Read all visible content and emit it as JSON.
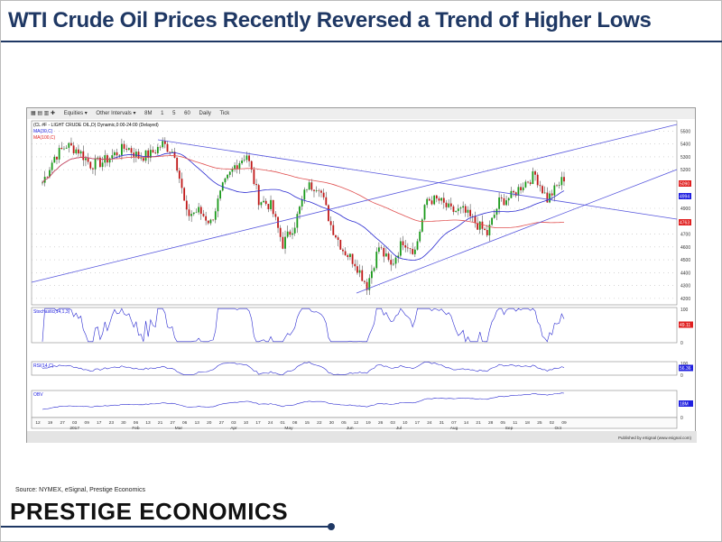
{
  "title": "WTI Crude Oil Prices Recently Reversed a Trend of Higher Lows",
  "toolbar": [
    "Equities ▾",
    "Other Intervals ▾",
    "8M",
    "1",
    "5",
    "60",
    "Daily",
    "Tick"
  ],
  "source": "Source: NYMEX, eSignal, Prestige Economics",
  "brand": "PRESTIGE ECONOMICS",
  "published": "Published by eSignal (www.esignal.com)",
  "chart_data": {
    "type": "candlestick",
    "title": "(CL #F - LIGHT CRUDE OIL,D) Dynamic,0:00-24:00 (Delayed)",
    "legend": [
      "MA(30,C)",
      "MA(100,C)"
    ],
    "ylim": [
      4150,
      5580
    ],
    "yticks": [
      5500,
      5400,
      5300,
      5200,
      4900,
      4700,
      4600,
      4500,
      4400,
      4300,
      4200
    ],
    "badges": [
      {
        "value": "5090",
        "color": "#e02020"
      },
      {
        "value": "4994",
        "color": "#2020e0"
      },
      {
        "value": "4763",
        "color": "#e02020"
      }
    ],
    "x_day_ticks": [
      "12",
      "19",
      "27",
      "03",
      "09",
      "17",
      "23",
      "30",
      "06",
      "13",
      "21",
      "27",
      "06",
      "13",
      "20",
      "27",
      "03",
      "10",
      "17",
      "24",
      "01",
      "08",
      "15",
      "22",
      "30",
      "05",
      "12",
      "19",
      "26",
      "03",
      "10",
      "17",
      "24",
      "31",
      "07",
      "14",
      "21",
      "28",
      "05",
      "11",
      "18",
      "25",
      "02",
      "09"
    ],
    "x_month_ticks": [
      "2017",
      "Feb",
      "Mar",
      "Apr",
      "May",
      "Jun",
      "Jul",
      "Aug",
      "Sep",
      "Oct"
    ],
    "weekly_close": [
      5100,
      5300,
      5390,
      5350,
      5240,
      5260,
      5320,
      5380,
      5300,
      5320,
      5400,
      5330,
      4850,
      4880,
      4790,
      5060,
      5230,
      5320,
      4970,
      4920,
      4620,
      4780,
      5070,
      5080,
      4770,
      4580,
      4480,
      4300,
      4600,
      4450,
      4650,
      4570,
      4970,
      4960,
      4880,
      4880,
      4790,
      4700,
      4950,
      4990,
      5090,
      5160,
      4970,
      5090
    ],
    "indicators": [
      {
        "name": "Stochastic(14,1,3)",
        "value": "49.11",
        "range": [
          "100",
          "0"
        ],
        "color": "#e02020"
      },
      {
        "name": "RSI(14,C)",
        "value": "56.36",
        "range": [
          "100",
          "0"
        ],
        "color": "#2020e0"
      },
      {
        "name": "OBV",
        "value": "18M",
        "range": [
          "0"
        ],
        "color": "#2020e0"
      }
    ]
  }
}
